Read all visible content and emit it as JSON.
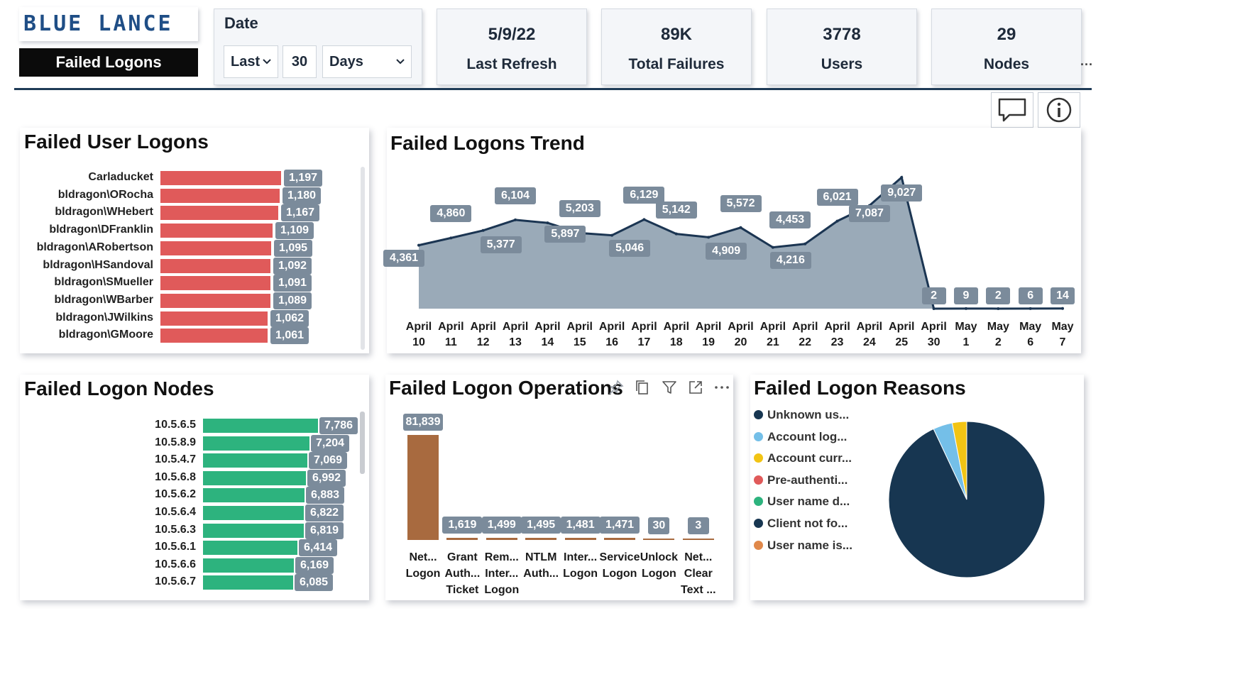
{
  "brand": {
    "logo_text": "BLUE LANCE",
    "page_label": "Failed Logons"
  },
  "date_filter": {
    "title": "Date",
    "mode": "Last",
    "amount": "30",
    "unit": "Days"
  },
  "kpis": [
    {
      "value": "5/9/22",
      "label": "Last Refresh"
    },
    {
      "value": "89K",
      "label": "Total Failures"
    },
    {
      "value": "3778",
      "label": "Users"
    },
    {
      "value": "29",
      "label": "Nodes"
    }
  ],
  "more_label": "...",
  "colors": {
    "user_bar": "#e05a5a",
    "node_bar": "#2db37e",
    "op_bar": "#a86a3f",
    "trend_fill": "#9aaab8",
    "trend_line": "#1b3552",
    "navy": "#173651"
  },
  "failed_user_logons": {
    "title": "Failed User Logons",
    "rows": [
      {
        "label": "Carladucket",
        "value": 1197,
        "text": "1,197"
      },
      {
        "label": "bldragon\\ORocha",
        "value": 1180,
        "text": "1,180"
      },
      {
        "label": "bldragon\\WHebert",
        "value": 1167,
        "text": "1,167"
      },
      {
        "label": "bldragon\\DFranklin",
        "value": 1109,
        "text": "1,109"
      },
      {
        "label": "bldragon\\ARobertson",
        "value": 1095,
        "text": "1,095"
      },
      {
        "label": "bldragon\\HSandoval",
        "value": 1092,
        "text": "1,092"
      },
      {
        "label": "bldragon\\SMueller",
        "value": 1091,
        "text": "1,091"
      },
      {
        "label": "bldragon\\WBarber",
        "value": 1089,
        "text": "1,089"
      },
      {
        "label": "bldragon\\JWilkins",
        "value": 1062,
        "text": "1,062"
      },
      {
        "label": "bldragon\\GMoore",
        "value": 1061,
        "text": "1,061"
      }
    ]
  },
  "chart_data": [
    {
      "type": "area",
      "title": "Failed Logons Trend",
      "x": [
        [
          "April",
          "10"
        ],
        [
          "April",
          "11"
        ],
        [
          "April",
          "12"
        ],
        [
          "April",
          "13"
        ],
        [
          "April",
          "14"
        ],
        [
          "April",
          "15"
        ],
        [
          "April",
          "16"
        ],
        [
          "April",
          "17"
        ],
        [
          "April",
          "18"
        ],
        [
          "April",
          "19"
        ],
        [
          "April",
          "20"
        ],
        [
          "April",
          "21"
        ],
        [
          "April",
          "22"
        ],
        [
          "April",
          "23"
        ],
        [
          "April",
          "24"
        ],
        [
          "April",
          "25"
        ],
        [
          "April",
          "30"
        ],
        [
          "May",
          "1"
        ],
        [
          "May",
          "2"
        ],
        [
          "May",
          "6"
        ],
        [
          "May",
          "7"
        ]
      ],
      "values": [
        4361,
        4860,
        5377,
        6104,
        5897,
        5203,
        5046,
        6129,
        5142,
        4909,
        5572,
        4216,
        4453,
        6021,
        7087,
        9027,
        2,
        9,
        2,
        6,
        14
      ],
      "labels": [
        "4,361",
        "4,860",
        "5,377",
        "6,104",
        "5,897",
        "5,203",
        "5,046",
        "6,129",
        "5,142",
        "4,909",
        "5,572",
        "4,216",
        "4,453",
        "6,021",
        "7,087",
        "9,027",
        "2",
        "9",
        "2",
        "6",
        "14"
      ]
    },
    {
      "type": "bar",
      "title": "Failed Logon Nodes",
      "categories": [
        "10.5.6.5",
        "10.5.8.9",
        "10.5.4.7",
        "10.5.6.8",
        "10.5.6.2",
        "10.5.6.4",
        "10.5.6.3",
        "10.5.6.1",
        "10.5.6.6",
        "10.5.6.7"
      ],
      "values": [
        7786,
        7204,
        7069,
        6992,
        6883,
        6822,
        6819,
        6414,
        6169,
        6085
      ],
      "labels": [
        "7,786",
        "7,204",
        "7,069",
        "6,992",
        "6,883",
        "6,822",
        "6,819",
        "6,414",
        "6,169",
        "6,085"
      ]
    },
    {
      "type": "bar",
      "title": "Failed Logon Operations",
      "categories": [
        [
          "Net...",
          "Logon"
        ],
        [
          "Grant",
          "Auth...",
          "Ticket"
        ],
        [
          "Rem...",
          "Inter...",
          "Logon"
        ],
        [
          "NTLM",
          "Auth..."
        ],
        [
          "Inter...",
          "Logon"
        ],
        [
          "Service",
          "Logon"
        ],
        [
          "Unlock",
          "Logon"
        ],
        [
          "Net...",
          "Clear",
          "Text ..."
        ]
      ],
      "values": [
        81839,
        1619,
        1499,
        1495,
        1481,
        1471,
        30,
        3
      ],
      "labels": [
        "81,839",
        "1,619",
        "1,499",
        "1,495",
        "1,481",
        "1,471",
        "30",
        "3"
      ]
    },
    {
      "type": "pie",
      "title": "Failed Logon Reasons",
      "legend": [
        {
          "name": "Unknown us...",
          "color": "#173651"
        },
        {
          "name": "Account log...",
          "color": "#74bfe8"
        },
        {
          "name": "Account curr...",
          "color": "#f2c414"
        },
        {
          "name": "Pre-authenti...",
          "color": "#e05a5a"
        },
        {
          "name": "User name d...",
          "color": "#2db37e"
        },
        {
          "name": "Client not fo...",
          "color": "#173651"
        },
        {
          "name": "User name is...",
          "color": "#e0884a"
        }
      ],
      "slices": [
        {
          "name": "Unknown us...",
          "fraction": 0.93,
          "color": "#173651"
        },
        {
          "name": "Account log...",
          "fraction": 0.04,
          "color": "#74bfe8"
        },
        {
          "name": "Account curr...",
          "fraction": 0.03,
          "color": "#f2c414"
        }
      ]
    }
  ]
}
